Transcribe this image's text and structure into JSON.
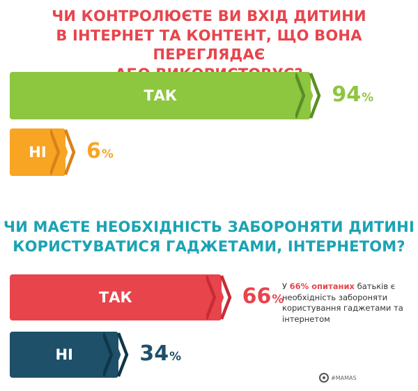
{
  "colors": {
    "q1_title": "#e8444c",
    "q2_title": "#1aa3b4",
    "yes_green": "#8dc63f",
    "yes_green_dark": "#5a8f25",
    "no_orange": "#f8a523",
    "no_orange_dark": "#d9821a",
    "yes_red": "#e8444c",
    "yes_red_dark": "#c72c35",
    "no_navy": "#1e5069",
    "no_navy_dark": "#103648"
  },
  "q1": {
    "title_line1": "ЧИ КОНТРОЛЮЄТЕ ВИ ВХІД ДИТИНИ",
    "title_line2": "В ІНТЕРНЕТ ТА КОНТЕНТ, ЩО ВОНА ПЕРЕГЛЯДАЄ",
    "title_line3": "АБО ВИКОРИСТОВУЄ?"
  },
  "q2": {
    "title_line1": "ЧИ МАЄТЕ НЕОБХІДНІСТЬ ЗАБОРОНЯТИ ДИТИНІ",
    "title_line2": "КОРИСТУВАТИСЯ ГАДЖЕТАМИ, ІНТЕРНЕТОМ?",
    "note_prefix": "У",
    "note_highlight": "66% опитаних",
    "note_rest": "батьків є необхідність забороняти користування гаджетами та інтернетом"
  },
  "chart_data": [
    {
      "type": "bar",
      "title": "ЧИ КОНТРОЛЮЄТЕ ВИ ВХІД ДИТИНИ В ІНТЕРНЕТ ТА КОНТЕНТ, ЩО ВОНА ПЕРЕГЛЯДАЄ АБО ВИКОРИСТОВУЄ?",
      "categories": [
        "ТАК",
        "НІ"
      ],
      "values": [
        94,
        6
      ],
      "value_labels": [
        "94",
        "6"
      ],
      "unit": "%"
    },
    {
      "type": "bar",
      "title": "ЧИ МАЄТЕ НЕОБХІДНІСТЬ ЗАБОРОНЯТИ ДИТИНІ КОРИСТУВАТИСЯ ГАДЖЕТАМИ, ІНТЕРНЕТОМ?",
      "categories": [
        "ТАК",
        "НІ"
      ],
      "values": [
        66,
        34
      ],
      "value_labels": [
        "66",
        "34"
      ],
      "unit": "%"
    }
  ],
  "logo": {
    "text": "#MAMAS"
  }
}
